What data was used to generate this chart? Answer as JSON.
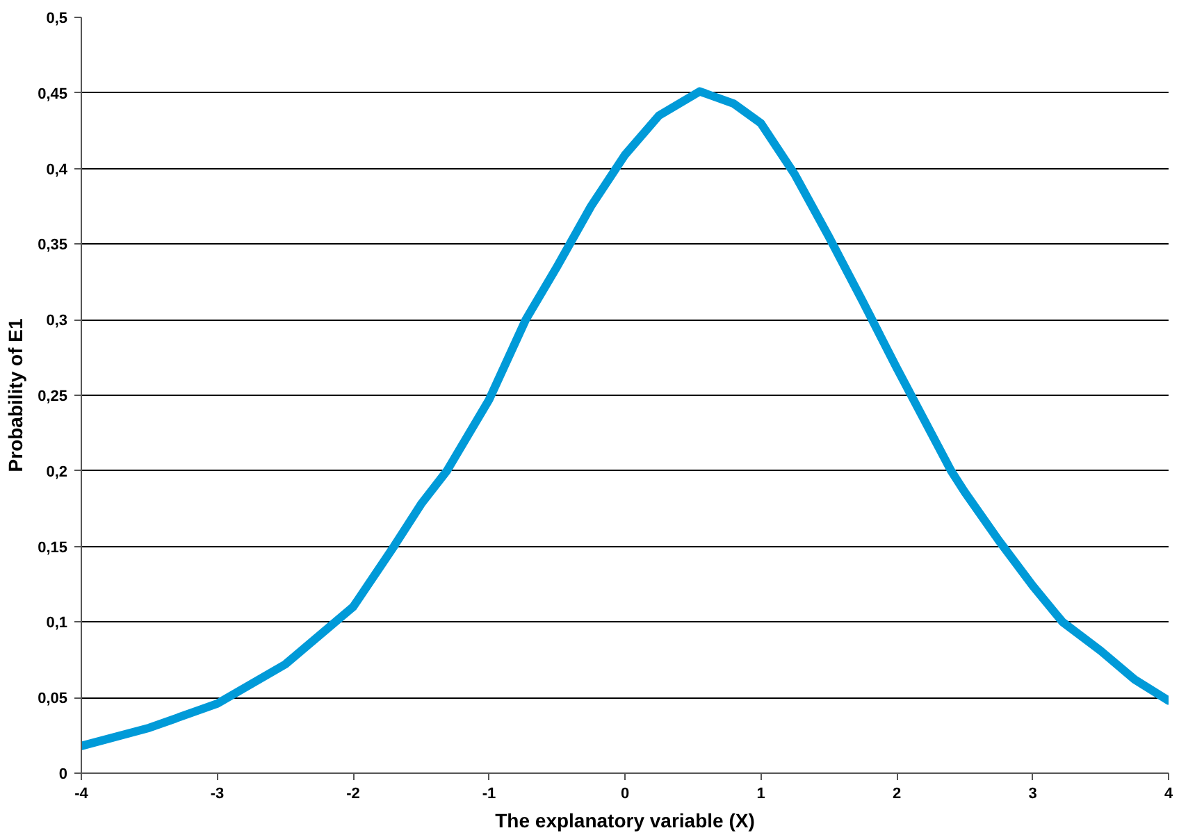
{
  "chart_data": {
    "type": "line",
    "xlabel": "The explanatory variable (X)",
    "ylabel": "Probability of E1",
    "x": [
      -4,
      -3.5,
      -3,
      -2.5,
      -2,
      -1.7,
      -1.5,
      -1.31,
      -1,
      -0.73,
      -0.5,
      -0.25,
      0,
      0.25,
      0.55,
      0.8,
      1,
      1.25,
      1.5,
      1.75,
      2,
      2.4,
      2.5,
      2.75,
      3,
      3.22,
      3.5,
      3.75,
      4
    ],
    "series": [
      {
        "color": "#009ad8",
        "values": [
          0.018,
          0.03,
          0.046,
          0.072,
          0.11,
          0.15,
          0.178,
          0.2,
          0.247,
          0.3,
          0.335,
          0.375,
          0.409,
          0.435,
          0.451,
          0.443,
          0.43,
          0.396,
          0.355,
          0.312,
          0.268,
          0.2,
          0.186,
          0.154,
          0.124,
          0.1,
          0.081,
          0.062,
          0.048
        ]
      }
    ],
    "xlim": [
      -4,
      4
    ],
    "ylim": [
      0,
      0.5
    ],
    "xticks": [
      -4,
      -3,
      -2,
      -1,
      0,
      1,
      2,
      3,
      4
    ],
    "yticks": [
      0,
      {
        "value": 0.05,
        "label": "0,05"
      },
      {
        "value": 0.1,
        "label": "0,1"
      },
      {
        "value": 0.15,
        "label": "0,15"
      },
      {
        "value": 0.2,
        "label": "0,2"
      },
      {
        "value": 0.25,
        "label": "0,25"
      },
      {
        "value": 0.3,
        "label": "0,3"
      },
      {
        "value": 0.35,
        "label": "0,35"
      },
      {
        "value": 0.4,
        "label": "0,4"
      },
      {
        "value": 0.45,
        "label": "0,45"
      },
      {
        "value": 0.5,
        "label": "0,5"
      }
    ],
    "grid": "y"
  }
}
